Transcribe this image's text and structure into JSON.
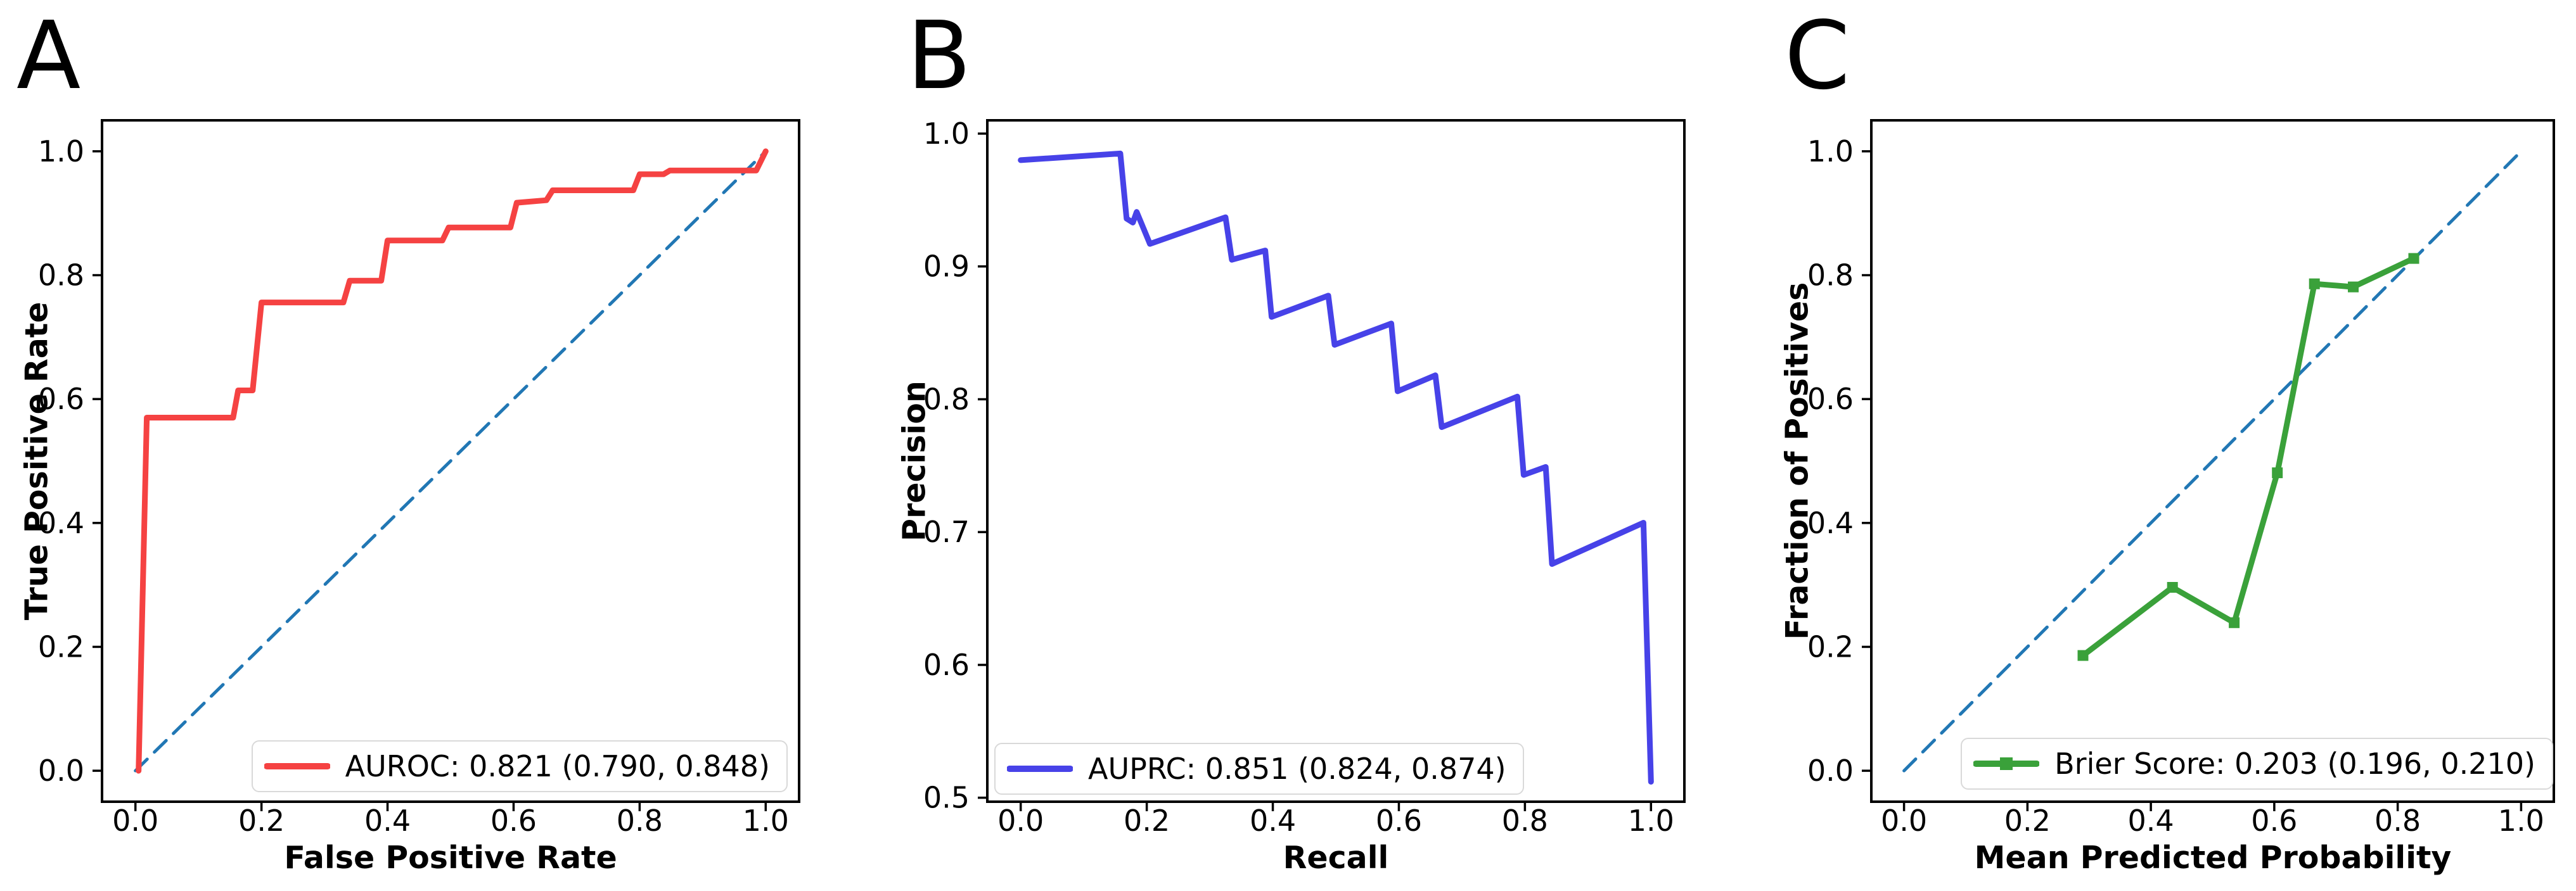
{
  "figure": {
    "background": "#ffffff"
  },
  "colors": {
    "roc_line": "#f54242",
    "pr_line": "#4742e8",
    "calibration_line": "#3aa13a",
    "reference_dashed": "#2177b4",
    "legend_border": "#d9d9d9",
    "text": "#000000"
  },
  "chart_data": [
    {
      "type": "line",
      "title": "A",
      "xlabel": "False Positive Rate",
      "ylabel": "True Positive Rate",
      "xlim": [
        -0.053,
        1.053
      ],
      "ylim": [
        -0.05,
        1.05
      ],
      "xticks": [
        0.0,
        0.2,
        0.4,
        0.6,
        0.8,
        1.0
      ],
      "yticks": [
        0.0,
        0.2,
        0.4,
        0.6,
        0.8,
        1.0
      ],
      "grid": false,
      "legend": {
        "position": "lower right",
        "label": "AUROC: 0.821 (0.790, 0.848)",
        "swatch": "line"
      },
      "series": [
        {
          "name": "chance-diagonal",
          "color": "#2177b4",
          "width": 5,
          "style": "dashed",
          "points": [
            [
              0.0,
              0.0
            ],
            [
              1.0,
              1.0
            ]
          ]
        },
        {
          "name": "AUROC: 0.821 (0.790, 0.848)",
          "color": "#f54242",
          "width": 9,
          "style": "solid",
          "points": [
            [
              0.005,
              0.0
            ],
            [
              0.018,
              0.57
            ],
            [
              0.155,
              0.57
            ],
            [
              0.163,
              0.614
            ],
            [
              0.186,
              0.614
            ],
            [
              0.2,
              0.756
            ],
            [
              0.33,
              0.756
            ],
            [
              0.34,
              0.791
            ],
            [
              0.39,
              0.791
            ],
            [
              0.4,
              0.856
            ],
            [
              0.487,
              0.856
            ],
            [
              0.497,
              0.877
            ],
            [
              0.595,
              0.877
            ],
            [
              0.605,
              0.917
            ],
            [
              0.652,
              0.921
            ],
            [
              0.662,
              0.937
            ],
            [
              0.79,
              0.937
            ],
            [
              0.8,
              0.963
            ],
            [
              0.838,
              0.963
            ],
            [
              0.848,
              0.969
            ],
            [
              0.985,
              0.969
            ],
            [
              1.0,
              1.0
            ]
          ]
        }
      ]
    },
    {
      "type": "line",
      "title": "B",
      "xlabel": "Recall",
      "ylabel": "Precision",
      "xlim": [
        -0.053,
        1.053
      ],
      "ylim": [
        0.497,
        1.01
      ],
      "xticks": [
        0.0,
        0.2,
        0.4,
        0.6,
        0.8,
        1.0
      ],
      "yticks": [
        0.5,
        0.6,
        0.7,
        0.8,
        0.9,
        1.0
      ],
      "grid": false,
      "legend": {
        "position": "lower left",
        "label": "AUPRC: 0.851 (0.824, 0.874)",
        "swatch": "line"
      },
      "series": [
        {
          "name": "AUPRC: 0.851 (0.824, 0.874)",
          "color": "#4742e8",
          "width": 9,
          "style": "solid",
          "points": [
            [
              0.0,
              0.98
            ],
            [
              0.158,
              0.985
            ],
            [
              0.168,
              0.936
            ],
            [
              0.178,
              0.933
            ],
            [
              0.184,
              0.941
            ],
            [
              0.205,
              0.917
            ],
            [
              0.325,
              0.937
            ],
            [
              0.335,
              0.905
            ],
            [
              0.388,
              0.912
            ],
            [
              0.398,
              0.862
            ],
            [
              0.488,
              0.878
            ],
            [
              0.498,
              0.841
            ],
            [
              0.588,
              0.857
            ],
            [
              0.598,
              0.806
            ],
            [
              0.658,
              0.818
            ],
            [
              0.668,
              0.779
            ],
            [
              0.788,
              0.802
            ],
            [
              0.798,
              0.743
            ],
            [
              0.833,
              0.749
            ],
            [
              0.843,
              0.676
            ],
            [
              0.988,
              0.707
            ],
            [
              1.0,
              0.512
            ]
          ]
        }
      ]
    },
    {
      "type": "line",
      "title": "C",
      "xlabel": "Mean Predicted Probability",
      "ylabel": "Fraction of Positives",
      "xlim": [
        -0.053,
        1.053
      ],
      "ylim": [
        -0.05,
        1.05
      ],
      "xticks": [
        0.0,
        0.2,
        0.4,
        0.6,
        0.8,
        1.0
      ],
      "yticks": [
        0.0,
        0.2,
        0.4,
        0.6,
        0.8,
        1.0
      ],
      "grid": false,
      "legend": {
        "position": "lower right",
        "label": "Brier Score: 0.203 (0.196, 0.210)",
        "swatch": "line-square-marker"
      },
      "series": [
        {
          "name": "perfect-calibration-diagonal",
          "color": "#2177b4",
          "width": 5,
          "style": "dashed",
          "points": [
            [
              0.0,
              0.0
            ],
            [
              1.0,
              1.0
            ]
          ]
        },
        {
          "name": "Brier Score: 0.203 (0.196, 0.210)",
          "color": "#3aa13a",
          "width": 9,
          "style": "solid",
          "marker": "square",
          "marker_size": 17,
          "points": [
            [
              0.29,
              0.186
            ],
            [
              0.435,
              0.296
            ],
            [
              0.535,
              0.239
            ],
            [
              0.605,
              0.481
            ],
            [
              0.665,
              0.786
            ],
            [
              0.728,
              0.781
            ],
            [
              0.826,
              0.827
            ]
          ]
        }
      ]
    }
  ]
}
